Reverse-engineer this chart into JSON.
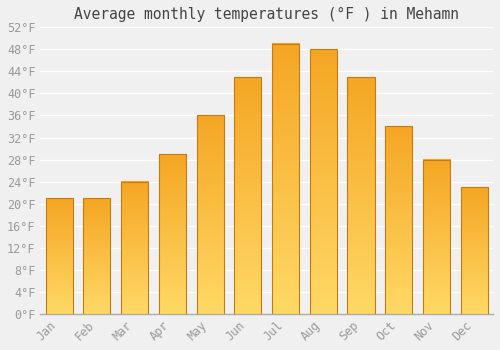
{
  "title": "Average monthly temperatures (°F ) in Mehamn",
  "months": [
    "Jan",
    "Feb",
    "Mar",
    "Apr",
    "May",
    "Jun",
    "Jul",
    "Aug",
    "Sep",
    "Oct",
    "Nov",
    "Dec"
  ],
  "values": [
    21,
    21,
    24,
    29,
    36,
    43,
    49,
    48,
    43,
    34,
    28,
    23
  ],
  "bar_color_top": "#F5A623",
  "bar_color_bottom": "#FFD966",
  "bar_border_color": "#C87A10",
  "ylim": [
    0,
    52
  ],
  "yticks": [
    0,
    4,
    8,
    12,
    16,
    20,
    24,
    28,
    32,
    36,
    40,
    44,
    48,
    52
  ],
  "ytick_labels": [
    "0°F",
    "4°F",
    "8°F",
    "12°F",
    "16°F",
    "20°F",
    "24°F",
    "28°F",
    "32°F",
    "36°F",
    "40°F",
    "44°F",
    "48°F",
    "52°F"
  ],
  "background_color": "#f0f0f0",
  "grid_color": "#ffffff",
  "title_fontsize": 10.5,
  "tick_fontsize": 8.5,
  "bar_width": 0.72
}
